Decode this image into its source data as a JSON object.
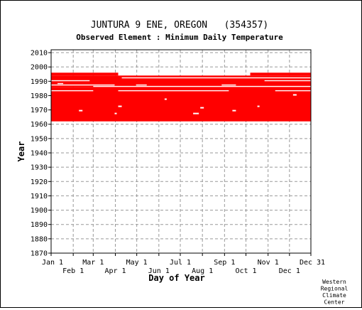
{
  "chart_data": {
    "type": "bar",
    "title": "JUNTURA 9 ENE, OREGON   (354357)",
    "subtitle": "Observed Element : Minimum Daily Temperature",
    "xlabel": "Day of Year",
    "ylabel": "Year",
    "xlim": [
      1,
      365
    ],
    "ylim": [
      1870,
      2012
    ],
    "y_ticks": [
      1870,
      1880,
      1890,
      1900,
      1910,
      1920,
      1930,
      1940,
      1950,
      1960,
      1970,
      1980,
      1990,
      2000,
      2010
    ],
    "x_ticks_top_row": [
      {
        "label": "Jan 1",
        "day": 1
      },
      {
        "label": "Mar 1",
        "day": 60
      },
      {
        "label": "May 1",
        "day": 121
      },
      {
        "label": "Jul 1",
        "day": 182
      },
      {
        "label": "Sep 1",
        "day": 244
      },
      {
        "label": "Nov 1",
        "day": 305
      },
      {
        "label": "Dec 31",
        "day": 365
      }
    ],
    "x_ticks_bottom_row": [
      {
        "label": "Feb 1",
        "day": 32
      },
      {
        "label": "Apr 1",
        "day": 91
      },
      {
        "label": "Jun 1",
        "day": 152
      },
      {
        "label": "Aug 1",
        "day": 213
      },
      {
        "label": "Oct 1",
        "day": 274
      },
      {
        "label": "Dec 1",
        "day": 335
      }
    ],
    "grid": true,
    "series_color": "#ff0000",
    "observed_bands": [
      {
        "year_start": 1962,
        "year_end": 1985,
        "day_start": 1,
        "day_end": 365
      },
      {
        "year_start": 1986,
        "year_end": 1993,
        "day_start": 1,
        "day_end": 365
      },
      {
        "year_start": 1994,
        "year_end": 1995,
        "day_start": 1,
        "day_end": 95
      },
      {
        "year_start": 1994,
        "year_end": 1995,
        "day_start": 280,
        "day_end": 365
      }
    ],
    "missing_gaps": [
      {
        "year": 1969,
        "day_start": 40,
        "day_end": 45
      },
      {
        "year": 1967,
        "day_start": 90,
        "day_end": 93
      },
      {
        "year": 1972,
        "day_start": 95,
        "day_end": 100
      },
      {
        "year": 1967,
        "day_start": 200,
        "day_end": 208
      },
      {
        "year": 1971,
        "day_start": 210,
        "day_end": 215
      },
      {
        "year": 1969,
        "day_start": 255,
        "day_end": 260
      },
      {
        "year": 1972,
        "day_start": 290,
        "day_end": 293
      },
      {
        "year": 1977,
        "day_start": 160,
        "day_end": 163
      },
      {
        "year": 1980,
        "day_start": 340,
        "day_end": 345
      }
    ],
    "missing_rows": [
      {
        "year": 1983,
        "day_start": 1,
        "day_end": 60
      },
      {
        "year": 1983,
        "day_start": 95,
        "day_end": 250
      },
      {
        "year": 1983,
        "day_start": 315,
        "day_end": 365
      },
      {
        "year": 1986,
        "day_start": 60,
        "day_end": 365
      },
      {
        "year": 1987,
        "day_start": 1,
        "day_end": 90
      },
      {
        "year": 1987,
        "day_start": 120,
        "day_end": 135
      },
      {
        "year": 1987,
        "day_start": 240,
        "day_end": 260
      },
      {
        "year": 1988,
        "day_start": 10,
        "day_end": 18
      },
      {
        "year": 1990,
        "day_start": 1,
        "day_end": 55
      },
      {
        "year": 1990,
        "day_start": 300,
        "day_end": 365
      },
      {
        "year": 1992,
        "day_start": 100,
        "day_end": 365
      }
    ]
  },
  "credit": [
    "Western",
    "Regional",
    "Climate",
    "Center"
  ]
}
